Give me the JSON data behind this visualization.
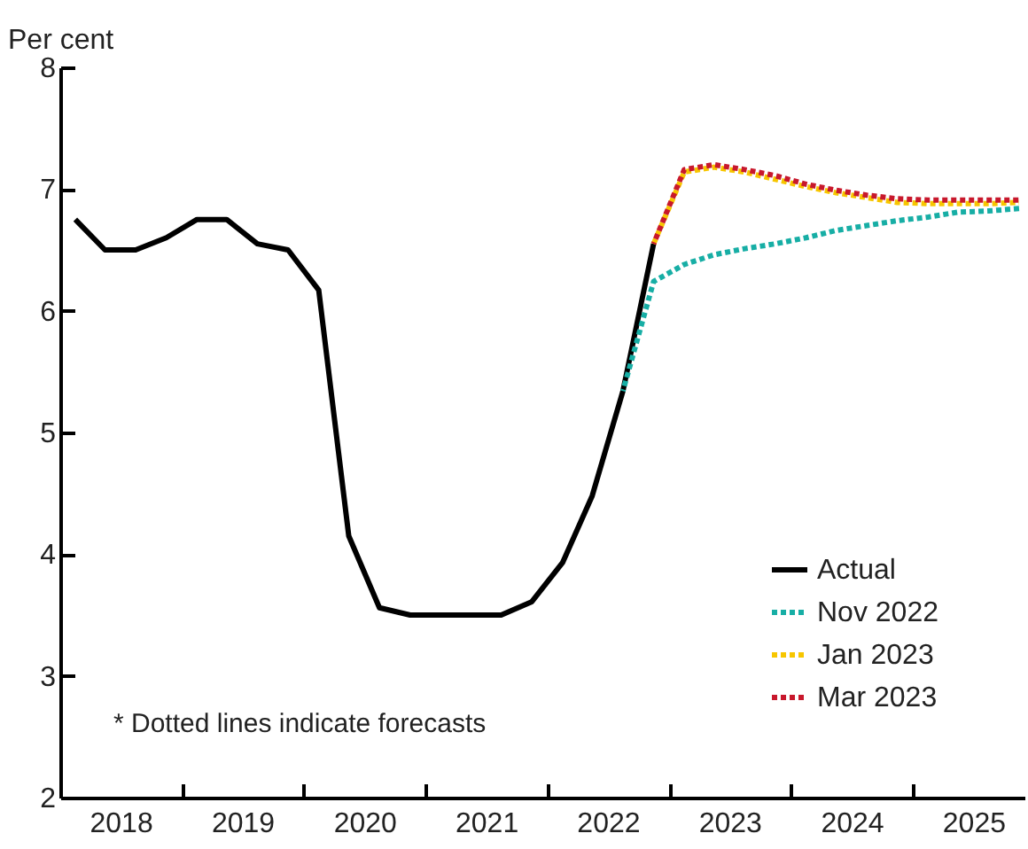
{
  "chart_data": {
    "type": "line",
    "ylabel": "Per cent",
    "annotations": [
      "* Dotted lines indicate forecasts"
    ],
    "xlim": [
      "2018-01",
      "2025-12"
    ],
    "xticks": [
      {
        "value": "2018-07",
        "label": "2018"
      },
      {
        "value": "2019-01",
        "label": null
      },
      {
        "value": "2019-07",
        "label": "2019"
      },
      {
        "value": "2020-01",
        "label": null
      },
      {
        "value": "2020-07",
        "label": "2020"
      },
      {
        "value": "2021-01",
        "label": null
      },
      {
        "value": "2021-07",
        "label": "2021"
      },
      {
        "value": "2022-01",
        "label": null
      },
      {
        "value": "2022-07",
        "label": "2022"
      },
      {
        "value": "2023-01",
        "label": null
      },
      {
        "value": "2023-07",
        "label": "2023"
      },
      {
        "value": "2024-01",
        "label": null
      },
      {
        "value": "2024-07",
        "label": "2024"
      },
      {
        "value": "2025-01",
        "label": null
      },
      {
        "value": "2025-07",
        "label": "2025"
      }
    ],
    "ylim": [
      2,
      8
    ],
    "yticks": [
      2,
      3,
      4,
      5,
      6,
      7,
      8
    ],
    "grid": false,
    "legend": "bottom right",
    "marker": "none",
    "series": [
      {
        "name": "Actual",
        "color": "#000000",
        "line_style": "solid",
        "x": [
          "2018-02-15",
          "2018-05-15",
          "2018-08-15",
          "2018-11-15",
          "2019-02-15",
          "2019-05-15",
          "2019-08-15",
          "2019-11-15",
          "2020-02-15",
          "2020-05-15",
          "2020-08-15",
          "2020-11-15",
          "2021-02-15",
          "2021-05-15",
          "2021-08-15",
          "2021-11-15",
          "2022-02-15",
          "2022-05-15",
          "2022-08-15",
          "2022-11-15"
        ],
        "values": [
          6.75,
          6.5,
          6.5,
          6.6,
          6.75,
          6.75,
          6.55,
          6.5,
          6.17,
          4.15,
          3.56,
          3.5,
          3.5,
          3.5,
          3.5,
          3.61,
          3.93,
          4.48,
          5.34,
          6.55
        ]
      },
      {
        "name": "Nov 2022",
        "color": "#17aea5",
        "line_style": "dotted",
        "x": [
          "2022-08-15",
          "2022-11-15",
          "2023-02-15",
          "2023-05-15",
          "2023-08-15",
          "2023-11-15",
          "2024-02-15",
          "2024-05-15",
          "2024-08-15",
          "2024-11-15",
          "2025-02-15",
          "2025-05-15",
          "2025-08-15",
          "2025-11-15"
        ],
        "values": [
          5.34,
          6.24,
          6.38,
          6.46,
          6.51,
          6.55,
          6.6,
          6.66,
          6.7,
          6.74,
          6.77,
          6.81,
          6.82,
          6.84
        ]
      },
      {
        "name": "Jan 2023",
        "color": "#f7c600",
        "line_style": "dotted",
        "x": [
          "2022-11-15",
          "2023-02-15",
          "2023-05-15",
          "2023-08-15",
          "2023-11-15",
          "2024-02-15",
          "2024-05-15",
          "2024-08-15",
          "2024-11-15",
          "2025-02-15",
          "2025-05-15",
          "2025-08-15",
          "2025-11-15"
        ],
        "values": [
          6.55,
          7.14,
          7.18,
          7.14,
          7.08,
          7.02,
          6.97,
          6.93,
          6.89,
          6.88,
          6.88,
          6.88,
          6.89
        ]
      },
      {
        "name": "Mar 2023",
        "color": "#c8182c",
        "line_style": "dotted",
        "x": [
          "2022-11-15",
          "2023-02-15",
          "2023-05-15",
          "2023-08-15",
          "2023-11-15",
          "2024-02-15",
          "2024-05-15",
          "2024-08-15",
          "2024-11-15",
          "2025-02-15",
          "2025-05-15",
          "2025-08-15",
          "2025-11-15"
        ],
        "values": [
          6.55,
          7.16,
          7.2,
          7.16,
          7.11,
          7.04,
          6.99,
          6.95,
          6.92,
          6.91,
          6.91,
          6.91,
          6.91
        ]
      }
    ]
  }
}
